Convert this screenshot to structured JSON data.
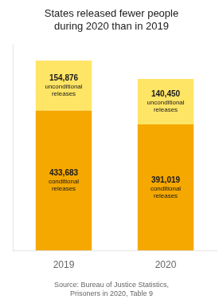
{
  "chart_data": {
    "type": "bar",
    "title": [
      "States released fewer people",
      "during 2020 than in 2019"
    ],
    "categories": [
      "2019",
      "2020"
    ],
    "series": [
      {
        "name": "conditional releases",
        "color": "#F5A800",
        "values": [
          433683,
          391019
        ],
        "value_labels": [
          "433,683",
          "391,019"
        ]
      },
      {
        "name": "unconditional releases",
        "color": "#FFE566",
        "values": [
          154876,
          140450
        ],
        "value_labels": [
          "154,876",
          "140,450"
        ]
      }
    ],
    "stacked": true,
    "data_labels": true,
    "ylim": [
      0,
      640000
    ],
    "grid": false,
    "tick_labels": "x",
    "annotations": [
      "Source: Bureau of Justice Statistics,",
      "Prisoners in 2020, Table 9"
    ]
  }
}
